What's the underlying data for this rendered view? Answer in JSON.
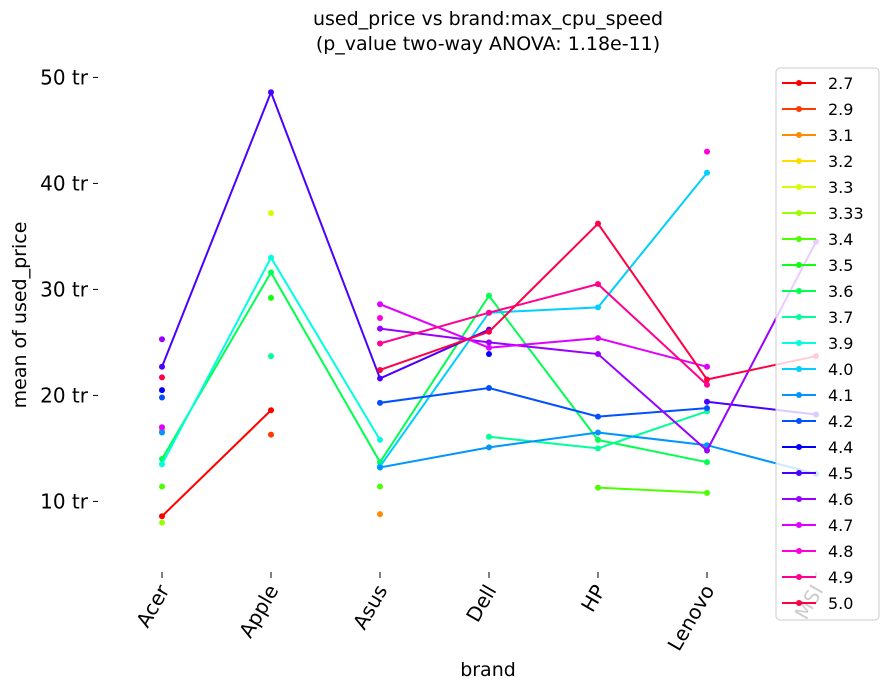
{
  "chart_data": {
    "type": "line",
    "title_line1": "used_price vs brand:max_cpu_speed",
    "title_line2": "(p_value two-way ANOVA: 1.18e-11)",
    "xlabel": "brand",
    "ylabel": "mean of used_price",
    "categories": [
      "Acer",
      "Apple",
      "Asus",
      "Dell",
      "HP",
      "Lenovo",
      "MSI"
    ],
    "ylim": [
      4,
      54
    ],
    "yticks": [
      {
        "value": 10,
        "label": "10 tr"
      },
      {
        "value": 20,
        "label": "20 tr"
      },
      {
        "value": 30,
        "label": "30 tr"
      },
      {
        "value": 40,
        "label": "40 tr"
      },
      {
        "value": 50,
        "label": "50 tr"
      }
    ],
    "grid": false,
    "legend_position": "right",
    "series": [
      {
        "name": "2.7",
        "color": "#ff0000",
        "values": [
          8.6,
          18.6,
          null,
          null,
          null,
          null,
          null
        ]
      },
      {
        "name": "2.9",
        "color": "#ff3a00",
        "values": [
          null,
          16.3,
          null,
          null,
          null,
          null,
          null
        ]
      },
      {
        "name": "3.1",
        "color": "#ff8c00",
        "values": [
          16.7,
          null,
          8.8,
          null,
          null,
          null,
          null
        ]
      },
      {
        "name": "3.2",
        "color": "#ffdd00",
        "values": [
          null,
          null,
          null,
          null,
          null,
          null,
          null
        ]
      },
      {
        "name": "3.3",
        "color": "#d4ff00",
        "values": [
          null,
          37.2,
          null,
          null,
          null,
          null,
          null
        ]
      },
      {
        "name": "3.33",
        "color": "#9cff00",
        "values": [
          8.0,
          null,
          null,
          null,
          null,
          null,
          null
        ]
      },
      {
        "name": "3.4",
        "color": "#4cff00",
        "values": [
          11.4,
          null,
          11.4,
          null,
          11.3,
          10.8,
          null
        ]
      },
      {
        "name": "3.5",
        "color": "#10ff10",
        "values": [
          null,
          29.2,
          null,
          null,
          null,
          null,
          null
        ]
      },
      {
        "name": "3.6",
        "color": "#00ff50",
        "values": [
          14.0,
          31.6,
          13.7,
          29.4,
          15.8,
          13.7,
          null
        ]
      },
      {
        "name": "3.7",
        "color": "#00ff99",
        "values": [
          null,
          23.7,
          null,
          16.1,
          15.0,
          18.5,
          null
        ]
      },
      {
        "name": "3.9",
        "color": "#00ffe0",
        "values": [
          13.5,
          33.0,
          15.8,
          null,
          null,
          null,
          null
        ]
      },
      {
        "name": "4.0",
        "color": "#00cfff",
        "values": [
          null,
          null,
          13.3,
          27.8,
          28.3,
          41.0,
          null
        ]
      },
      {
        "name": "4.1",
        "color": "#0095ff",
        "values": [
          16.5,
          null,
          13.2,
          15.1,
          16.5,
          15.3,
          12.6
        ]
      },
      {
        "name": "4.2",
        "color": "#0050ff",
        "values": [
          19.8,
          null,
          19.3,
          20.7,
          18.0,
          18.8,
          null
        ]
      },
      {
        "name": "4.4",
        "color": "#0000ff",
        "values": [
          20.5,
          null,
          null,
          23.9,
          null,
          null,
          null
        ]
      },
      {
        "name": "4.5",
        "color": "#4a00ff",
        "values": [
          22.7,
          48.6,
          21.6,
          26.2,
          null,
          19.4,
          18.2
        ]
      },
      {
        "name": "4.6",
        "color": "#9800ff",
        "values": [
          25.3,
          null,
          26.3,
          25.0,
          23.9,
          14.8,
          34.5
        ]
      },
      {
        "name": "4.7",
        "color": "#e000ff",
        "values": [
          17.0,
          null,
          28.6,
          24.5,
          25.4,
          22.7,
          null
        ]
      },
      {
        "name": "4.8",
        "color": "#ff00dc",
        "values": [
          null,
          null,
          27.3,
          null,
          null,
          43.0,
          null
        ]
      },
      {
        "name": "4.9",
        "color": "#ff0090",
        "values": [
          null,
          null,
          24.9,
          27.8,
          30.5,
          21.0,
          null
        ]
      },
      {
        "name": "5.0",
        "color": "#ff0044",
        "values": [
          21.7,
          null,
          22.4,
          26.0,
          36.2,
          21.5,
          23.7
        ]
      }
    ]
  }
}
